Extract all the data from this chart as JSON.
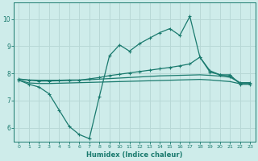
{
  "xlabel": "Humidex (Indice chaleur)",
  "background_color": "#ceecea",
  "grid_color": "#b8d8d6",
  "line_color": "#1a7a6e",
  "xlim": [
    -0.5,
    23.5
  ],
  "ylim": [
    5.5,
    10.6
  ],
  "yticks": [
    6,
    7,
    8,
    9,
    10
  ],
  "xticks": [
    0,
    1,
    2,
    3,
    4,
    5,
    6,
    7,
    8,
    9,
    10,
    11,
    12,
    13,
    14,
    15,
    16,
    17,
    18,
    19,
    20,
    21,
    22,
    23
  ],
  "series1_x": [
    0,
    1,
    2,
    3,
    4,
    5,
    6,
    7,
    8,
    9,
    10,
    11,
    12,
    13,
    14,
    15,
    16,
    17,
    18,
    19,
    20,
    21,
    22,
    23
  ],
  "series1_y": [
    7.75,
    7.6,
    7.5,
    7.25,
    6.65,
    6.05,
    5.75,
    5.6,
    7.15,
    8.65,
    9.05,
    8.82,
    9.1,
    9.3,
    9.5,
    9.65,
    9.4,
    10.1,
    8.6,
    8.05,
    7.95,
    7.95,
    7.6,
    7.6
  ],
  "series2_x": [
    0,
    1,
    2,
    3,
    4,
    5,
    6,
    7,
    8,
    9,
    10,
    11,
    12,
    13,
    14,
    15,
    16,
    17,
    18,
    19,
    20,
    21,
    22,
    23
  ],
  "series2_y": [
    7.8,
    7.75,
    7.72,
    7.72,
    7.73,
    7.74,
    7.75,
    7.8,
    7.85,
    7.92,
    7.97,
    8.02,
    8.07,
    8.12,
    8.17,
    8.22,
    8.28,
    8.35,
    8.6,
    8.1,
    7.95,
    7.9,
    7.65,
    7.65
  ],
  "series3_x": [
    0,
    1,
    2,
    3,
    4,
    5,
    6,
    7,
    8,
    9,
    10,
    11,
    12,
    13,
    14,
    15,
    16,
    17,
    18,
    19,
    20,
    21,
    22,
    23
  ],
  "series3_y": [
    7.78,
    7.76,
    7.75,
    7.75,
    7.75,
    7.76,
    7.76,
    7.77,
    7.79,
    7.81,
    7.83,
    7.85,
    7.87,
    7.89,
    7.91,
    7.92,
    7.93,
    7.94,
    7.95,
    7.93,
    7.9,
    7.86,
    7.66,
    7.66
  ],
  "series4_x": [
    0,
    1,
    2,
    3,
    4,
    5,
    6,
    7,
    8,
    9,
    10,
    11,
    12,
    13,
    14,
    15,
    16,
    17,
    18,
    19,
    20,
    21,
    22,
    23
  ],
  "series4_y": [
    7.75,
    7.65,
    7.63,
    7.63,
    7.64,
    7.65,
    7.66,
    7.67,
    7.68,
    7.69,
    7.7,
    7.71,
    7.72,
    7.73,
    7.74,
    7.75,
    7.76,
    7.77,
    7.78,
    7.76,
    7.73,
    7.7,
    7.62,
    7.62
  ]
}
